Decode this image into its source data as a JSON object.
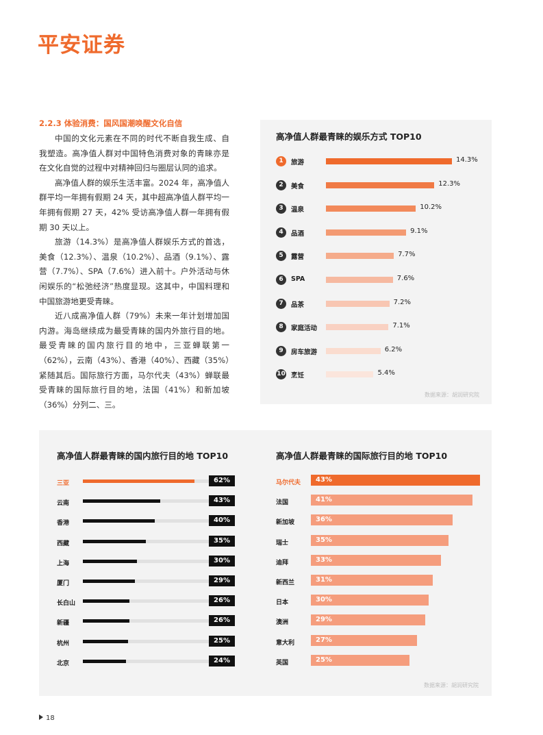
{
  "brand": {
    "logo_text": "平安证券",
    "accent": "#ef6a2c"
  },
  "section": {
    "title": "2.2.3 体验消费：国风国潮唤醒文化自信",
    "paragraphs": [
      "中国的文化元素在不同的时代不断自我生成、自我塑造。高净值人群对中国特色消费对象的青睐亦是在文化自觉的过程中对精神回归与圈层认同的追求。",
      "高净值人群的娱乐生活丰富。2024 年，高净值人群平均一年拥有假期 24 天，其中超高净值人群平均一年拥有假期 27 天，42% 受访高净值人群一年拥有假期 30 天以上。",
      "旅游（14.3%）是高净值人群娱乐方式的首选，美食（12.3%）、温泉（10.2%）、品酒（9.1%）、露营（7.7%）、SPA（7.6%）进入前十。户外活动与休闲娱乐的“松弛经济”热度显现。这其中，中国料理和中国旅游地更受青睐。",
      "近八成高净值人群（79%）未来一年计划增加国内游。海岛继续成为最受青睐的国内外旅行目的地。最受青睐的国内旅行目的地中，三亚蝉联第一（62%），云南（43%）、香港（40%）、西藏（35%）紧随其后。国际旅行方面，马尔代夫（43%）蝉联最受青睐的国际旅行目的地，法国（41%）和新加坡（36%）分列二、三。"
    ]
  },
  "chart_data": [
    {
      "type": "bar",
      "title": "高净值人群最青睐的娱乐方式 TOP10",
      "ranks": [
        "1",
        "2",
        "3",
        "4",
        "5",
        "6",
        "7",
        "8",
        "9",
        "10"
      ],
      "categories": [
        "旅游",
        "美食",
        "温泉",
        "品酒",
        "露营",
        "SPA",
        "品茶",
        "家庭活动",
        "房车旅游",
        "烹饪"
      ],
      "values": [
        14.3,
        12.3,
        10.2,
        9.1,
        7.7,
        7.6,
        7.2,
        7.1,
        6.2,
        5.4
      ],
      "value_labels": [
        "14.3%",
        "12.3%",
        "10.2%",
        "9.1%",
        "7.7%",
        "7.6%",
        "7.2%",
        "7.1%",
        "6.2%",
        "5.4%"
      ],
      "colors": [
        "#ef6a2c",
        "#f07a45",
        "#f2895a",
        "#f39a72",
        "#f5ab8a",
        "#f6b9a0",
        "#f8c6b2",
        "#f9d1c2",
        "#fadccf",
        "#fbe5dc"
      ],
      "source": "数据来源：胡润研究院"
    },
    {
      "type": "bar",
      "title": "高净值人群最青睐的国内旅行目的地 TOP10",
      "categories": [
        "三亚",
        "云南",
        "香港",
        "西藏",
        "上海",
        "厦门",
        "长白山",
        "新疆",
        "杭州",
        "北京"
      ],
      "values": [
        62,
        43,
        40,
        35,
        30,
        29,
        26,
        26,
        25,
        24
      ],
      "value_labels": [
        "62%",
        "43%",
        "40%",
        "35%",
        "30%",
        "29%",
        "26%",
        "26%",
        "25%",
        "24%"
      ],
      "xlim": [
        0,
        70
      ]
    },
    {
      "type": "bar",
      "title": "高净值人群最青睐的国际旅行目的地 TOP10",
      "categories": [
        "马尔代夫",
        "法国",
        "新加坡",
        "瑞士",
        "迪拜",
        "新西兰",
        "日本",
        "澳洲",
        "意大利",
        "英国"
      ],
      "values": [
        43,
        41,
        36,
        35,
        33,
        31,
        30,
        29,
        27,
        25
      ],
      "value_labels": [
        "43%",
        "41%",
        "36%",
        "35%",
        "33%",
        "31%",
        "30%",
        "29%",
        "27%",
        "25%"
      ],
      "xlim": [
        0,
        43
      ],
      "source": "数据来源：胡润研究院"
    }
  ],
  "footer": {
    "page_number": "18"
  }
}
